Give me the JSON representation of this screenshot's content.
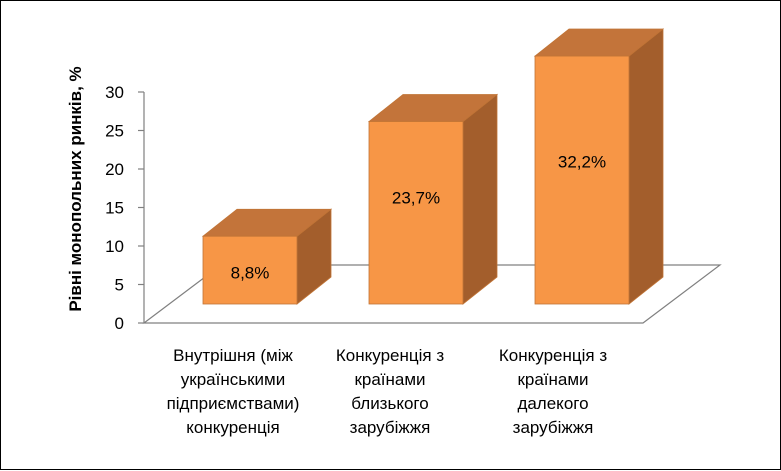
{
  "chart_data": {
    "type": "bar",
    "title": "",
    "xlabel": "",
    "ylabel": "Рівні монопольних ринків, %",
    "ylim": [
      0,
      30
    ],
    "yticks": [
      "0",
      "5",
      "10",
      "15",
      "20",
      "25",
      "30"
    ],
    "grid": false,
    "legend": "none",
    "categories": [
      [
        "Внутрішня (між",
        "українськими",
        "підприємствами)",
        "конкуренція"
      ],
      [
        "Конкуренція з",
        "країнами",
        "близького",
        "зарубіжжя"
      ],
      [
        "Конкуренція з",
        "країнами",
        "далекого",
        "зарубіжжя"
      ]
    ],
    "values": [
      8.8,
      23.7,
      32.2
    ],
    "data_labels": [
      "8,8%",
      "23,7%",
      "32,2%"
    ],
    "colors": {
      "front": "#F79646",
      "top": "#C3743A",
      "side": "#A35E2C",
      "edge": "#C07436"
    }
  }
}
